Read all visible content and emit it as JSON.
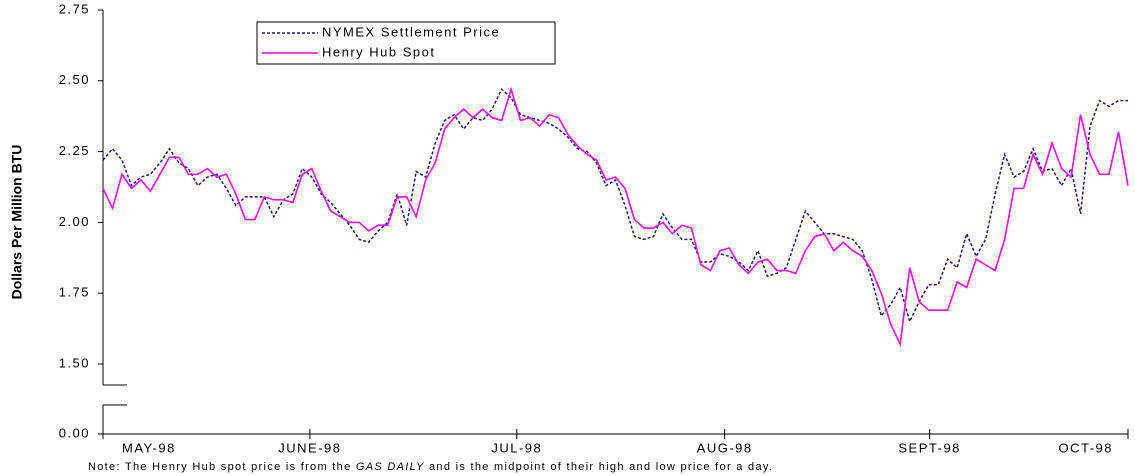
{
  "chart_data": {
    "type": "line",
    "y_label": "Dollars Per Million BTU",
    "note": [
      "Note: The Henry Hub spot price is from the ",
      "GAS DAILY",
      " and is the midpoint of their high and low price for a day."
    ],
    "ylim": [
      0,
      2.75
    ],
    "axis_break": [
      0,
      1.5
    ],
    "yticks": [
      {
        "value": 0,
        "label": "0.00"
      },
      {
        "value": 1.5,
        "label": "1.50"
      },
      1.75,
      {
        "value": 2,
        "label": "2.00"
      },
      2.25,
      {
        "value": 2.5,
        "label": "2.50"
      },
      2.75
    ],
    "xlim": [
      0,
      108
    ],
    "xticks": [
      {
        "value": 0,
        "label": "MAY-98"
      },
      {
        "value": 21.8,
        "label": "JUNE-98"
      },
      {
        "value": 43.6,
        "label": "JUL-98"
      },
      {
        "value": 65.5,
        "label": "AUG-98"
      },
      {
        "value": 87.1,
        "label": "SEPT-98"
      },
      {
        "value": 108,
        "label": "OCT-98"
      }
    ],
    "legend": "top-left",
    "series": [
      {
        "name": "NYMEX Settlement Price",
        "color": "#1a1a6e",
        "dash": true,
        "values": [
          2.22,
          2.26,
          2.22,
          2.13,
          2.16,
          2.17,
          2.21,
          2.26,
          2.21,
          2.19,
          2.13,
          2.16,
          2.17,
          2.12,
          2.06,
          2.09,
          2.09,
          2.09,
          2.02,
          2.08,
          2.1,
          2.19,
          2.16,
          2.1,
          2.07,
          2.03,
          1.99,
          1.94,
          1.93,
          1.97,
          2.0,
          2.1,
          1.99,
          2.18,
          2.16,
          2.28,
          2.36,
          2.38,
          2.33,
          2.37,
          2.36,
          2.4,
          2.47,
          2.44,
          2.38,
          2.37,
          2.36,
          2.35,
          2.33,
          2.3,
          2.26,
          2.25,
          2.21,
          2.13,
          2.15,
          2.06,
          1.95,
          1.94,
          1.95,
          2.03,
          1.98,
          1.94,
          1.94,
          1.86,
          1.86,
          1.89,
          1.88,
          1.86,
          1.83,
          1.9,
          1.81,
          1.82,
          1.84,
          1.94,
          2.04,
          2.0,
          1.96,
          1.96,
          1.95,
          1.94,
          1.9,
          1.8,
          1.67,
          1.71,
          1.77,
          1.65,
          1.72,
          1.78,
          1.78,
          1.87,
          1.84,
          1.96,
          1.88,
          1.94,
          2.1,
          2.24,
          2.16,
          2.18,
          2.26,
          2.18,
          2.19,
          2.13,
          2.19,
          2.03,
          2.34,
          2.43,
          2.41,
          2.43,
          2.43
        ]
      },
      {
        "name": "Henry Hub Spot",
        "color": "#ff00ff",
        "dash": false,
        "values": [
          2.12,
          2.05,
          2.17,
          2.12,
          2.15,
          2.11,
          2.17,
          2.23,
          2.23,
          2.17,
          2.17,
          2.19,
          2.16,
          2.17,
          2.1,
          2.01,
          2.01,
          2.09,
          2.08,
          2.08,
          2.07,
          2.17,
          2.19,
          2.11,
          2.04,
          2.02,
          2.0,
          2.0,
          1.97,
          1.99,
          1.99,
          2.09,
          2.09,
          2.02,
          2.15,
          2.21,
          2.33,
          2.37,
          2.4,
          2.37,
          2.4,
          2.37,
          2.36,
          2.47,
          2.36,
          2.37,
          2.34,
          2.38,
          2.37,
          2.31,
          2.27,
          2.24,
          2.22,
          2.15,
          2.16,
          2.12,
          2.01,
          1.98,
          1.98,
          2.0,
          1.96,
          1.99,
          1.98,
          1.85,
          1.83,
          1.9,
          1.91,
          1.85,
          1.82,
          1.86,
          1.87,
          1.83,
          1.83,
          1.82,
          1.9,
          1.95,
          1.96,
          1.9,
          1.93,
          1.9,
          1.88,
          1.83,
          1.75,
          1.64,
          1.57,
          1.84,
          1.72,
          1.69,
          1.69,
          1.69,
          1.79,
          1.77,
          1.87,
          1.85,
          1.83,
          1.94,
          2.12,
          2.12,
          2.24,
          2.17,
          2.28,
          2.19,
          2.16,
          2.38,
          2.24,
          2.17,
          2.17,
          2.32,
          2.13
        ]
      }
    ]
  }
}
